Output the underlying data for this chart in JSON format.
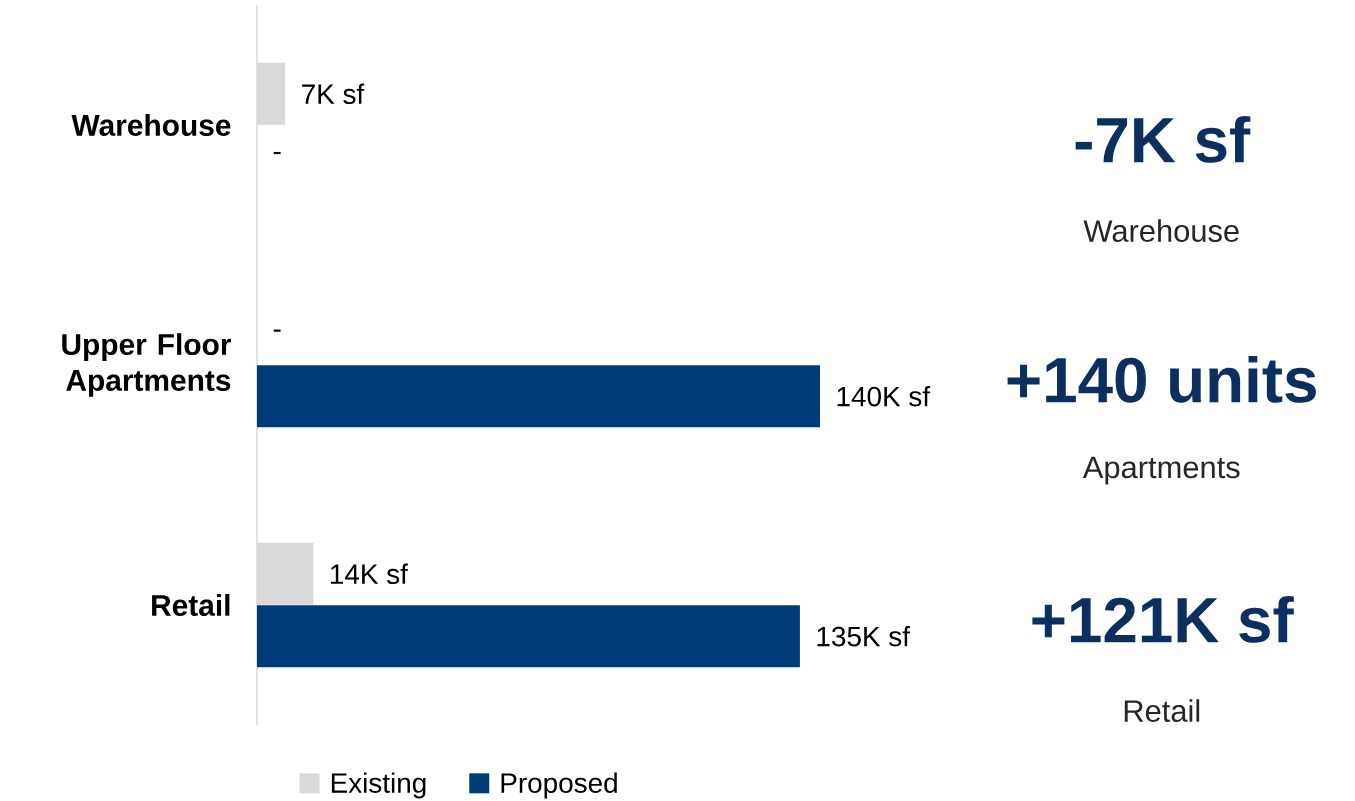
{
  "chart_data": {
    "type": "bar",
    "orientation": "horizontal",
    "categories": [
      "Warehouse",
      "Upper Floor Apartments",
      "Retail"
    ],
    "series": [
      {
        "name": "Existing",
        "color": "#d9d9d9",
        "values": [
          7,
          null,
          14
        ],
        "value_labels": [
          "7K sf",
          null,
          "14K sf"
        ]
      },
      {
        "name": "Proposed",
        "color": "#003c78",
        "values": [
          null,
          140,
          135
        ],
        "value_labels": [
          null,
          "140K sf",
          "135K sf"
        ]
      }
    ],
    "legend": "bottom",
    "annotations": [
      "-7K sf",
      "Warehouse",
      "+140 units",
      "Apartments",
      "+121K sf",
      "Retail",
      {
        "text": "-",
        "x": 0,
        "y": "Warehouse"
      },
      {
        "text": "-",
        "x": 0,
        "y": "Upper Floor Apartments"
      }
    ]
  }
}
